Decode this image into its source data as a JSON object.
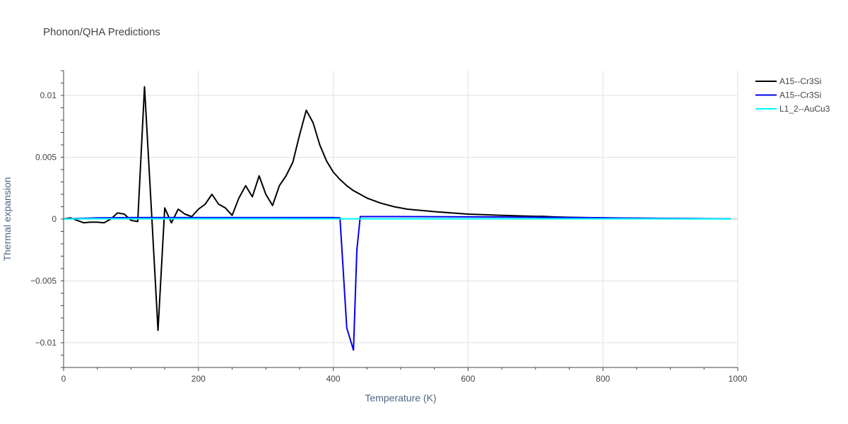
{
  "chart_data": {
    "type": "line",
    "title": "Phonon/QHA Predictions",
    "xlabel": "Temperature (K)",
    "ylabel": "Thermal expansion",
    "xlim": [
      0,
      1000
    ],
    "ylim": [
      -0.012,
      0.012
    ],
    "x_ticks": [
      0,
      200,
      400,
      600,
      800,
      1000
    ],
    "x_tick_labels": [
      "0",
      "200",
      "400",
      "600",
      "800",
      "1000"
    ],
    "y_ticks": [
      -0.01,
      -0.005,
      0,
      0.005,
      0.01
    ],
    "y_tick_labels": [
      "−0.01",
      "−0.005",
      "0",
      "0.005",
      "0.01"
    ],
    "grid": true,
    "legend_position": "top-right",
    "series": [
      {
        "name": "A15--Cr3Si",
        "color": "#000000",
        "x": [
          0,
          10,
          20,
          30,
          40,
          50,
          60,
          70,
          80,
          90,
          100,
          110,
          120,
          130,
          140,
          150,
          160,
          170,
          180,
          190,
          200,
          210,
          220,
          230,
          240,
          250,
          260,
          270,
          280,
          290,
          300,
          310,
          320,
          330,
          340,
          350,
          360,
          370,
          380,
          390,
          400,
          410,
          420,
          430,
          440,
          450,
          470,
          490,
          510,
          550,
          600,
          650,
          700,
          710,
          730,
          750,
          800,
          850,
          900,
          950,
          990
        ],
        "y": [
          0,
          0.0001,
          -0.0001,
          -0.0003,
          -0.00025,
          -0.00025,
          -0.0003,
          0,
          0.0005,
          0.0004,
          -0.0001,
          -0.0002,
          0.0107,
          0.001,
          -0.009,
          0.0009,
          -0.0003,
          0.0008,
          0.0004,
          0.0002,
          0.0008,
          0.0012,
          0.002,
          0.0012,
          0.0009,
          0.0003,
          0.0017,
          0.0027,
          0.0018,
          0.0035,
          0.002,
          0.0011,
          0.0027,
          0.0035,
          0.0046,
          0.0068,
          0.0088,
          0.0078,
          0.006,
          0.0047,
          0.0038,
          0.0032,
          0.0027,
          0.0023,
          0.002,
          0.0017,
          0.0013,
          0.001,
          0.0008,
          0.0006,
          0.0004,
          0.0003,
          0.00022,
          0.00022,
          0.00017,
          0.00014,
          0.0001,
          7e-05,
          5e-05,
          3e-05,
          2e-05
        ]
      },
      {
        "name": "A15--Cr3Si",
        "color": "#0000ee",
        "x": [
          0,
          20,
          50,
          100,
          200,
          300,
          400,
          410,
          420,
          430,
          435,
          440,
          500,
          600,
          700,
          800,
          900,
          990
        ],
        "y": [
          0,
          5e-05,
          0.0001,
          0.00012,
          0.00012,
          0.00012,
          0.00012,
          0.0001,
          -0.0088,
          -0.0106,
          -0.0025,
          0.0002,
          0.0002,
          0.00018,
          0.00015,
          0.0001,
          5e-05,
          2e-05
        ]
      },
      {
        "name": "L1_2--AuCu3",
        "color": "#00ffff",
        "x": [
          0,
          20,
          50,
          100,
          200,
          400,
          600,
          800,
          990
        ],
        "y": [
          0,
          2e-05,
          3e-05,
          3e-05,
          3e-05,
          2e-05,
          2e-05,
          2e-05,
          1e-05
        ]
      }
    ]
  }
}
